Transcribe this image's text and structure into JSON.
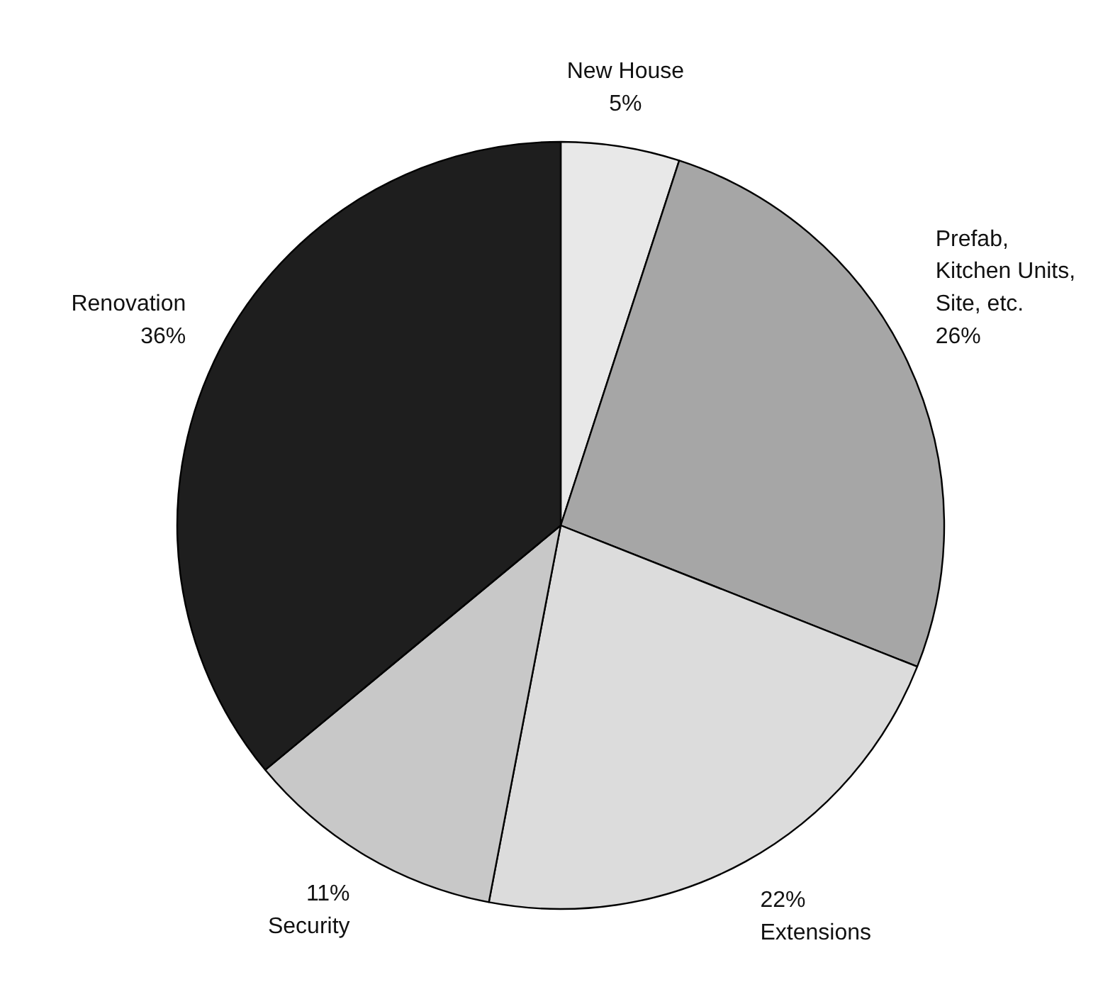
{
  "chart_data": {
    "type": "pie",
    "categories": [
      "New House",
      "Prefab,\nKitchen Units,\nSite, etc.",
      "Extensions",
      "Security",
      "Renovation"
    ],
    "values": [
      5,
      26,
      22,
      11,
      36
    ],
    "value_labels": [
      "5%",
      "26%",
      "22%",
      "11%",
      "36%"
    ],
    "colors": [
      "#e8e8e8",
      "#a6a6a6",
      "#dcdcdc",
      "#c8c8c8",
      "#1e1e1e"
    ]
  }
}
